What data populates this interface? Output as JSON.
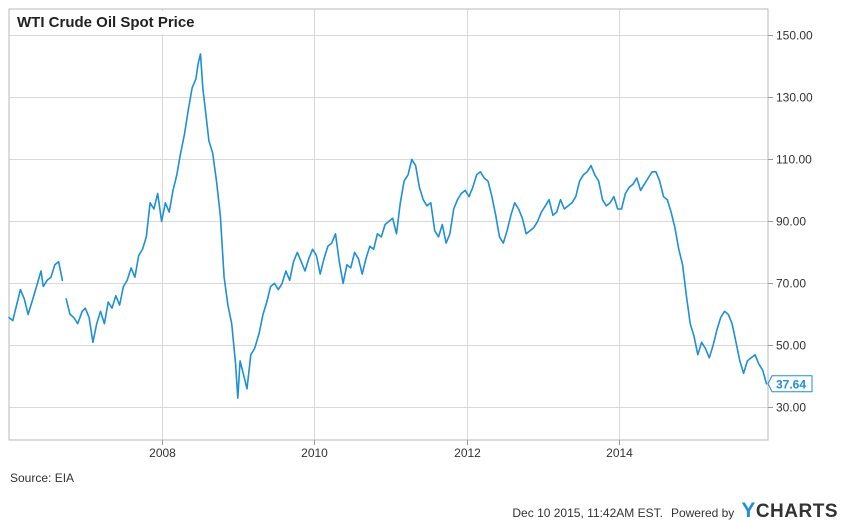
{
  "title": "WTI Crude Oil Spot Price",
  "source": "Source: EIA",
  "timestamp": "Dec 10 2015, 11:42AM EST.",
  "powered_by": "Powered by",
  "brand": {
    "first_letter": "Y",
    "rest": "CHARTS"
  },
  "colors": {
    "line": "#1e8fd9",
    "grid": "#d9d9d9",
    "last_value": "#1e8fd9"
  },
  "chart_data": {
    "type": "line",
    "title": "WTI Crude Oil Spot Price",
    "xlabel": "",
    "ylabel": "",
    "xlim": [
      2006.0,
      2015.95
    ],
    "ylim": [
      19.5,
      158.5
    ],
    "y_axis_side": "right",
    "grid": true,
    "x_ticks": [
      2008,
      2010,
      2012,
      2014
    ],
    "x_tick_labels": [
      "2008",
      "2010",
      "2012",
      "2014"
    ],
    "y_ticks": [
      30,
      50,
      70,
      90,
      110,
      130,
      150
    ],
    "y_tick_labels": [
      "30.00",
      "50.00",
      "70.00",
      "90.00",
      "110.00",
      "130.00",
      "150.00"
    ],
    "last_value_label": "37.64",
    "series": [
      {
        "name": "",
        "segments": [
          [
            [
              2006.0,
              59
            ],
            [
              2006.05,
              58
            ],
            [
              2006.1,
              63
            ],
            [
              2006.15,
              68
            ],
            [
              2006.2,
              65
            ],
            [
              2006.25,
              60
            ],
            [
              2006.3,
              64
            ],
            [
              2006.36,
              69
            ],
            [
              2006.42,
              74
            ],
            [
              2006.45,
              69
            ],
            [
              2006.5,
              71
            ],
            [
              2006.55,
              72
            ],
            [
              2006.6,
              76
            ],
            [
              2006.65,
              77
            ],
            [
              2006.7,
              71
            ]
          ],
          [
            [
              2006.75,
              65
            ],
            [
              2006.8,
              60
            ],
            [
              2006.85,
              59
            ],
            [
              2006.9,
              57
            ],
            [
              2006.96,
              61
            ],
            [
              2007.0,
              62
            ],
            [
              2007.05,
              59
            ],
            [
              2007.1,
              51
            ],
            [
              2007.15,
              57
            ],
            [
              2007.2,
              61
            ],
            [
              2007.25,
              57
            ],
            [
              2007.3,
              64
            ],
            [
              2007.35,
              62
            ],
            [
              2007.4,
              66
            ],
            [
              2007.45,
              63
            ],
            [
              2007.5,
              69
            ],
            [
              2007.55,
              71
            ],
            [
              2007.6,
              75
            ],
            [
              2007.65,
              72
            ],
            [
              2007.7,
              79
            ],
            [
              2007.75,
              81
            ],
            [
              2007.8,
              85
            ],
            [
              2007.85,
              96
            ],
            [
              2007.9,
              94
            ],
            [
              2007.95,
              99
            ],
            [
              2008.0,
              90
            ],
            [
              2008.05,
              96
            ],
            [
              2008.1,
              93
            ],
            [
              2008.15,
              100
            ],
            [
              2008.2,
              105
            ],
            [
              2008.25,
              112
            ],
            [
              2008.3,
              118
            ],
            [
              2008.35,
              126
            ],
            [
              2008.4,
              133
            ],
            [
              2008.45,
              136
            ],
            [
              2008.48,
              141
            ],
            [
              2008.51,
              144
            ],
            [
              2008.54,
              133
            ],
            [
              2008.57,
              127
            ],
            [
              2008.62,
              116
            ],
            [
              2008.67,
              112
            ],
            [
              2008.72,
              103
            ],
            [
              2008.77,
              92
            ],
            [
              2008.82,
              72
            ],
            [
              2008.87,
              63
            ],
            [
              2008.92,
              57
            ],
            [
              2008.97,
              44
            ],
            [
              2009.0,
              33
            ],
            [
              2009.03,
              45
            ],
            [
              2009.07,
              41
            ],
            [
              2009.12,
              36
            ],
            [
              2009.17,
              47
            ],
            [
              2009.22,
              49
            ],
            [
              2009.28,
              54
            ],
            [
              2009.33,
              60
            ],
            [
              2009.38,
              64
            ],
            [
              2009.43,
              69
            ],
            [
              2009.48,
              70
            ],
            [
              2009.53,
              68
            ],
            [
              2009.58,
              70
            ],
            [
              2009.63,
              74
            ],
            [
              2009.68,
              71
            ],
            [
              2009.73,
              77
            ],
            [
              2009.78,
              80
            ],
            [
              2009.83,
              77
            ],
            [
              2009.88,
              74
            ],
            [
              2009.93,
              78
            ],
            [
              2009.98,
              81
            ],
            [
              2010.03,
              79
            ],
            [
              2010.08,
              73
            ],
            [
              2010.13,
              78
            ],
            [
              2010.18,
              82
            ],
            [
              2010.23,
              83
            ],
            [
              2010.28,
              86
            ],
            [
              2010.33,
              77
            ],
            [
              2010.38,
              70
            ],
            [
              2010.43,
              76
            ],
            [
              2010.48,
              75
            ],
            [
              2010.53,
              80
            ],
            [
              2010.58,
              78
            ],
            [
              2010.63,
              73
            ],
            [
              2010.68,
              78
            ],
            [
              2010.73,
              82
            ],
            [
              2010.78,
              81
            ],
            [
              2010.83,
              86
            ],
            [
              2010.88,
              85
            ],
            [
              2010.93,
              89
            ],
            [
              2010.98,
              90
            ],
            [
              2011.03,
              91
            ],
            [
              2011.08,
              86
            ],
            [
              2011.13,
              96
            ],
            [
              2011.18,
              103
            ],
            [
              2011.23,
              105
            ],
            [
              2011.28,
              110
            ],
            [
              2011.33,
              108
            ],
            [
              2011.38,
              101
            ],
            [
              2011.43,
              97
            ],
            [
              2011.48,
              95
            ],
            [
              2011.53,
              96
            ],
            [
              2011.58,
              87
            ],
            [
              2011.63,
              85
            ],
            [
              2011.68,
              89
            ],
            [
              2011.73,
              83
            ],
            [
              2011.78,
              86
            ],
            [
              2011.83,
              94
            ],
            [
              2011.88,
              97
            ],
            [
              2011.93,
              99
            ],
            [
              2011.98,
              100
            ],
            [
              2012.03,
              98
            ],
            [
              2012.08,
              101
            ],
            [
              2012.13,
              105
            ],
            [
              2012.18,
              106
            ],
            [
              2012.23,
              104
            ],
            [
              2012.28,
              103
            ],
            [
              2012.33,
              98
            ],
            [
              2012.38,
              92
            ],
            [
              2012.43,
              85
            ],
            [
              2012.48,
              83
            ],
            [
              2012.53,
              87
            ],
            [
              2012.58,
              92
            ],
            [
              2012.63,
              96
            ],
            [
              2012.68,
              94
            ],
            [
              2012.73,
              91
            ],
            [
              2012.78,
              86
            ],
            [
              2012.83,
              87
            ],
            [
              2012.88,
              88
            ],
            [
              2012.93,
              90
            ],
            [
              2012.98,
              93
            ],
            [
              2013.03,
              95
            ],
            [
              2013.08,
              97
            ],
            [
              2013.13,
              92
            ],
            [
              2013.18,
              93
            ],
            [
              2013.23,
              97
            ],
            [
              2013.28,
              94
            ],
            [
              2013.33,
              95
            ],
            [
              2013.38,
              96
            ],
            [
              2013.43,
              98
            ],
            [
              2013.48,
              103
            ],
            [
              2013.53,
              105
            ],
            [
              2013.58,
              106
            ],
            [
              2013.63,
              108
            ],
            [
              2013.68,
              105
            ],
            [
              2013.73,
              103
            ],
            [
              2013.78,
              97
            ],
            [
              2013.83,
              95
            ],
            [
              2013.88,
              96
            ],
            [
              2013.93,
              98
            ],
            [
              2013.98,
              94
            ],
            [
              2014.03,
              94
            ],
            [
              2014.08,
              99
            ],
            [
              2014.13,
              101
            ],
            [
              2014.18,
              102
            ],
            [
              2014.23,
              104
            ],
            [
              2014.28,
              100
            ],
            [
              2014.33,
              102
            ],
            [
              2014.38,
              104
            ],
            [
              2014.43,
              106
            ],
            [
              2014.48,
              106
            ],
            [
              2014.53,
              103
            ],
            [
              2014.58,
              98
            ],
            [
              2014.63,
              97
            ],
            [
              2014.68,
              93
            ],
            [
              2014.73,
              88
            ],
            [
              2014.78,
              81
            ],
            [
              2014.83,
              76
            ],
            [
              2014.88,
              66
            ],
            [
              2014.93,
              57
            ],
            [
              2014.98,
              53
            ],
            [
              2015.03,
              47
            ],
            [
              2015.08,
              51
            ],
            [
              2015.13,
              49
            ],
            [
              2015.18,
              46
            ],
            [
              2015.23,
              50
            ],
            [
              2015.28,
              55
            ],
            [
              2015.33,
              59
            ],
            [
              2015.38,
              61
            ],
            [
              2015.43,
              60
            ],
            [
              2015.48,
              57
            ],
            [
              2015.53,
              51
            ],
            [
              2015.58,
              45
            ],
            [
              2015.63,
              41
            ],
            [
              2015.68,
              45
            ],
            [
              2015.73,
              46
            ],
            [
              2015.78,
              47
            ],
            [
              2015.83,
              44
            ],
            [
              2015.88,
              42
            ],
            [
              2015.93,
              37.64
            ]
          ]
        ]
      }
    ]
  }
}
